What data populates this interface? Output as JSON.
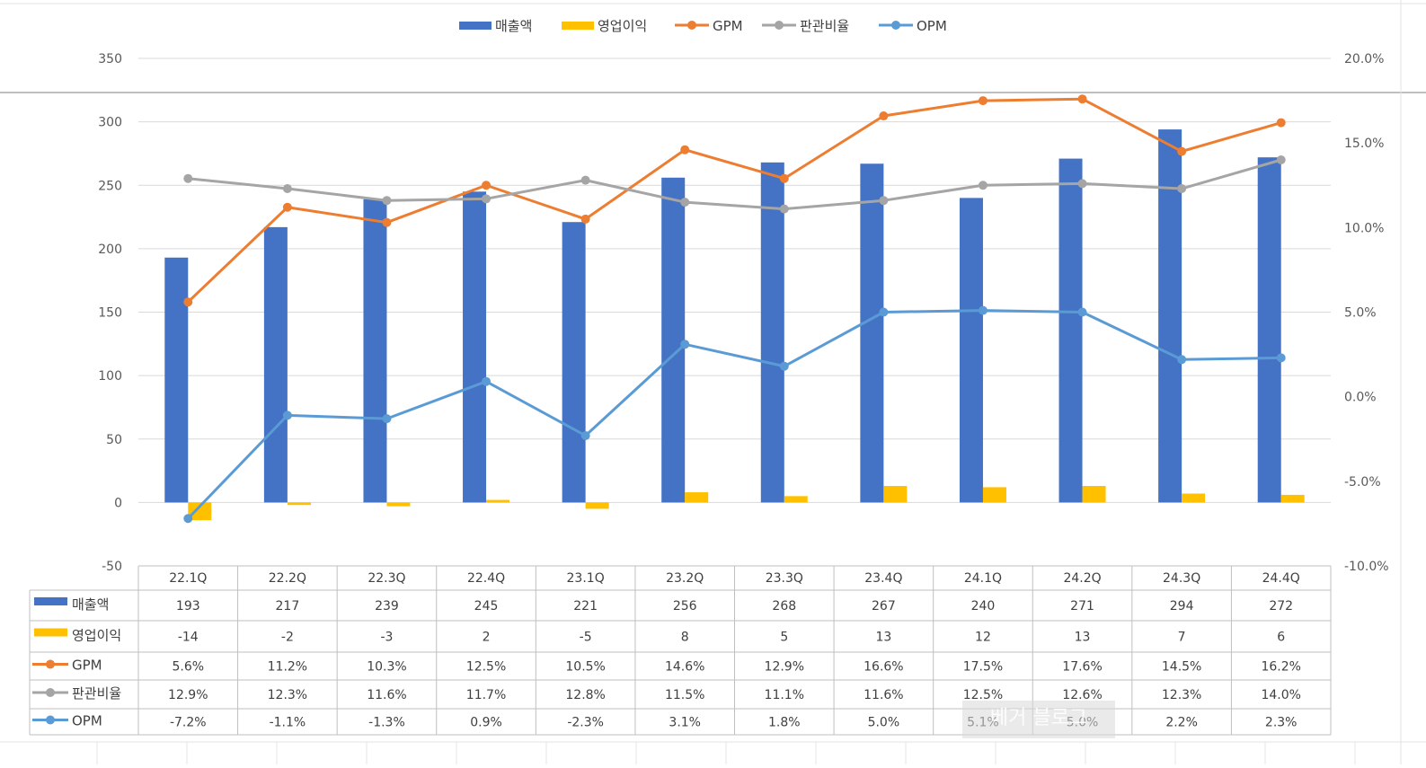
{
  "chart_data": {
    "type": "bar",
    "categories": [
      "22.1Q",
      "22.2Q",
      "22.3Q",
      "22.4Q",
      "23.1Q",
      "23.2Q",
      "23.3Q",
      "23.4Q",
      "24.1Q",
      "24.2Q",
      "24.3Q",
      "24.4Q"
    ],
    "series": [
      {
        "name": "매출액",
        "kind": "bar",
        "axis": "left",
        "color": "#4472C4",
        "values": [
          193,
          217,
          239,
          245,
          221,
          256,
          268,
          267,
          240,
          271,
          294,
          272
        ],
        "labels": [
          "193",
          "217",
          "239",
          "245",
          "221",
          "256",
          "268",
          "267",
          "240",
          "271",
          "294",
          "272"
        ]
      },
      {
        "name": "영업이익",
        "kind": "bar",
        "axis": "left",
        "color": "#FFC000",
        "values": [
          -14,
          -2,
          -3,
          2,
          -5,
          8,
          5,
          13,
          12,
          13,
          7,
          6
        ],
        "labels": [
          "-14",
          "-2",
          "-3",
          "2",
          "-5",
          "8",
          "5",
          "13",
          "12",
          "13",
          "7",
          "6"
        ]
      },
      {
        "name": "GPM",
        "kind": "line",
        "axis": "right",
        "color": "#ED7D31",
        "values": [
          5.6,
          11.2,
          10.3,
          12.5,
          10.5,
          14.6,
          12.9,
          16.6,
          17.5,
          17.6,
          14.5,
          16.2
        ],
        "labels": [
          "5.6%",
          "11.2%",
          "10.3%",
          "12.5%",
          "10.5%",
          "14.6%",
          "12.9%",
          "16.6%",
          "17.5%",
          "17.6%",
          "14.5%",
          "16.2%"
        ]
      },
      {
        "name": "판관비율",
        "kind": "line",
        "axis": "right",
        "color": "#A5A5A5",
        "values": [
          12.9,
          12.3,
          11.6,
          11.7,
          12.8,
          11.5,
          11.1,
          11.6,
          12.5,
          12.6,
          12.3,
          14.0
        ],
        "labels": [
          "12.9%",
          "12.3%",
          "11.6%",
          "11.7%",
          "12.8%",
          "11.5%",
          "11.1%",
          "11.6%",
          "12.5%",
          "12.6%",
          "12.3%",
          "14.0%"
        ]
      },
      {
        "name": "OPM",
        "kind": "line",
        "axis": "right",
        "color": "#5B9BD5",
        "values": [
          -7.2,
          -1.1,
          -1.3,
          0.9,
          -2.3,
          3.1,
          1.8,
          5.0,
          5.1,
          5.0,
          2.2,
          2.3
        ],
        "labels": [
          "-7.2%",
          "-1.1%",
          "-1.3%",
          "0.9%",
          "-2.3%",
          "3.1%",
          "1.8%",
          "5.0%",
          "5.1%",
          "5.0%",
          "2.2%",
          "2.3%"
        ]
      }
    ],
    "y_left": {
      "lim": [
        -50,
        350
      ],
      "ticks": [
        "350",
        "300",
        "250",
        "200",
        "150",
        "100",
        "50",
        "0",
        "-50"
      ],
      "tick_values": [
        350,
        300,
        250,
        200,
        150,
        100,
        50,
        0,
        -50
      ]
    },
    "y_right": {
      "lim": [
        -10,
        20
      ],
      "ticks": [
        "20.0%",
        "15.0%",
        "10.0%",
        "5.0%",
        "0.0%",
        "-5.0%",
        "-10.0%"
      ],
      "tick_values": [
        20,
        15,
        10,
        5,
        0,
        -5,
        -10
      ]
    },
    "grid": true,
    "legend_position": "top-center",
    "data_table": true
  },
  "watermark": "베거 블로그"
}
